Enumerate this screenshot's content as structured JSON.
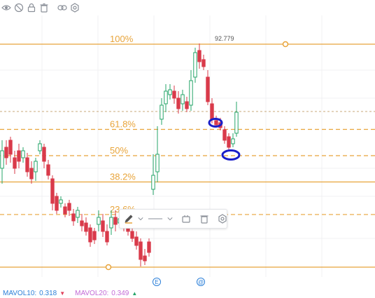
{
  "toolbar": {
    "icons": [
      "eye-icon",
      "eye-off-icon",
      "lock-icon",
      "delete-icon",
      "link-icon",
      "settings-icon"
    ]
  },
  "fibonacci": {
    "levels": [
      {
        "label": "100%",
        "ratio": 1.0
      },
      {
        "label": "61.8%",
        "ratio": 0.618
      },
      {
        "label": "50%",
        "ratio": 0.5
      },
      {
        "label": "38.2%",
        "ratio": 0.382
      },
      {
        "label": "23.6%",
        "ratio": 0.236
      },
      {
        "label": "",
        "ratio": 0
      }
    ],
    "color": "#e8a43a"
  },
  "price_label": "92.779",
  "float_toolbar": {
    "icons": [
      "pen-icon",
      "chevron-down-icon",
      "line-style-icon",
      "chevron-down-icon",
      "copy-icon",
      "trash-icon",
      "settings-icon"
    ]
  },
  "volume_legend": {
    "mavol10_label": "MAVOL10:",
    "mavol10_value": "0.318",
    "mavol10_arrow": "▼",
    "mavol20_label": "MAVOL20:",
    "mavol20_value": "0.349",
    "mavol20_arrow": "▲"
  },
  "event_markers": [
    "E",
    "@"
  ],
  "colors": {
    "up": "#26a56a",
    "down": "#d93a4a",
    "highlight": "#1a1fc8",
    "dashed_price_line": "#c9a97a"
  }
}
